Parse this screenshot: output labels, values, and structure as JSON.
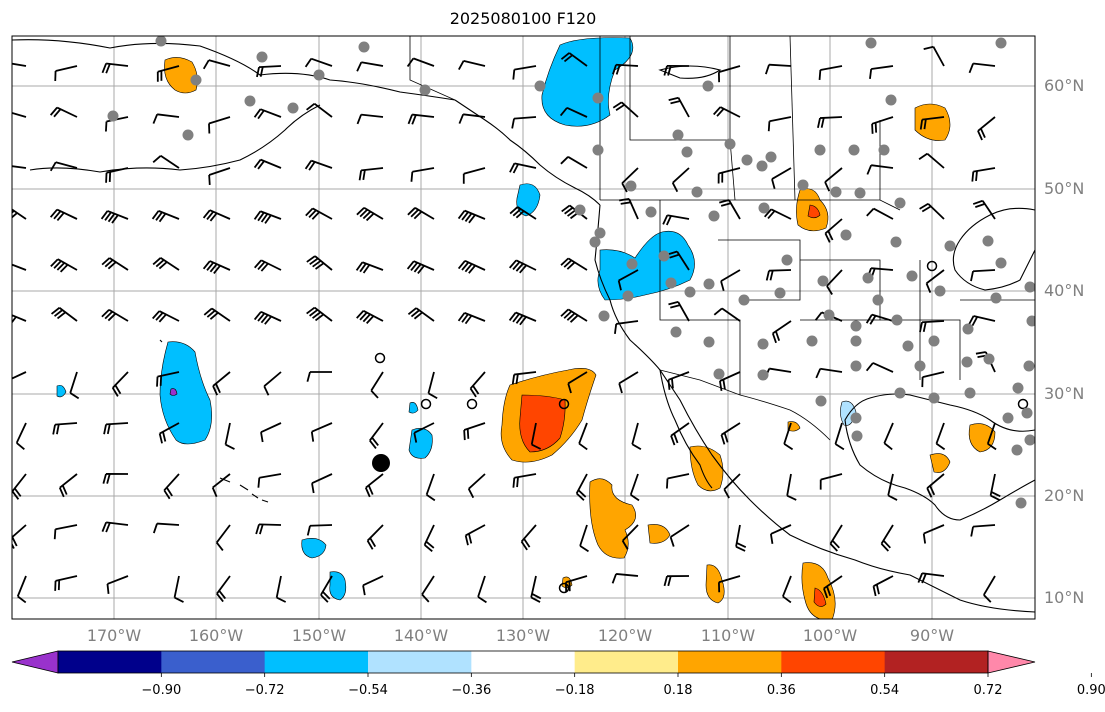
{
  "title": "2025080100 F120",
  "lat_labels": [
    "60°N",
    "50°N",
    "40°N",
    "30°N",
    "20°N",
    "10°N"
  ],
  "lon_labels": [
    "170°W",
    "160°W",
    "150°W",
    "140°W",
    "130°W",
    "120°W",
    "110°W",
    "100°W",
    "90°W"
  ],
  "colorbar": {
    "colors": [
      "#9932CC",
      "#00008B",
      "#3A5FCD",
      "#00BFFF",
      "#B0E2FF",
      "#FFFFFF",
      "#FFEC8B",
      "#FFA500",
      "#FF4500",
      "#B22222",
      "#FF88AA"
    ],
    "tick_labels": [
      "−0.90",
      "−0.72",
      "−0.54",
      "−0.36",
      "−0.18",
      "0.18",
      "0.36",
      "0.54",
      "0.72",
      "0.90"
    ]
  },
  "map_extent": {
    "lon": [
      -180,
      -80
    ],
    "lat": [
      8,
      65
    ]
  }
}
